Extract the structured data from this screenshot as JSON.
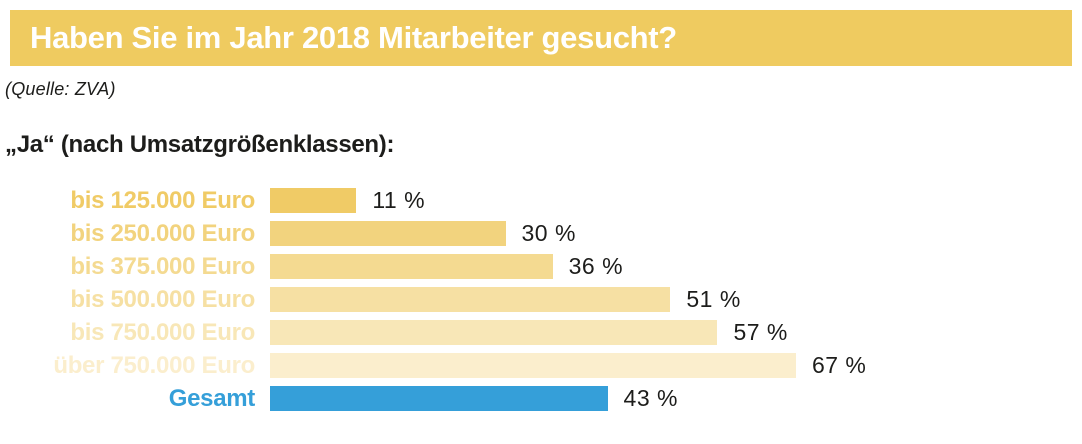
{
  "header": {
    "title": "Haben Sie im Jahr 2018 Mitarbeiter gesucht?",
    "background": "#efcb60",
    "text_color": "#ffffff"
  },
  "source": "(Quelle: ZVA)",
  "subtitle": "„Ja“ (nach Umsatzgrößenklassen):",
  "chart_data": {
    "type": "bar",
    "orientation": "horizontal",
    "title": "Haben Sie im Jahr 2018 Mitarbeiter gesucht?",
    "subtitle": "„Ja“ (nach Umsatzgrößenklassen):",
    "unit": "%",
    "xlim": [
      0,
      100
    ],
    "grid": false,
    "legend": false,
    "categories": [
      "bis 125.000 Euro",
      "bis 250.000 Euro",
      "bis 375.000 Euro",
      "bis 500.000 Euro",
      "bis 750.000 Euro",
      "über 750.000 Euro",
      "Gesamt"
    ],
    "values": [
      11,
      30,
      36,
      51,
      57,
      67,
      43
    ],
    "rows": [
      {
        "label": "bis 125.000 Euro",
        "value": 11,
        "value_label": "11 %",
        "color": "#f0cb66"
      },
      {
        "label": "bis 250.000 Euro",
        "value": 30,
        "value_label": "30 %",
        "color": "#f2d37e"
      },
      {
        "label": "bis 375.000 Euro",
        "value": 36,
        "value_label": "36 %",
        "color": "#f4da91"
      },
      {
        "label": "bis 500.000 Euro",
        "value": 51,
        "value_label": "51 %",
        "color": "#f6e0a3"
      },
      {
        "label": "bis 750.000 Euro",
        "value": 57,
        "value_label": "57 %",
        "color": "#f8e7b7"
      },
      {
        "label": "über 750.000 Euro",
        "value": 67,
        "value_label": "67 %",
        "color": "#fbeecd"
      },
      {
        "label": "Gesamt",
        "value": 43,
        "value_label": "43 %",
        "color": "#359fd9"
      }
    ]
  }
}
